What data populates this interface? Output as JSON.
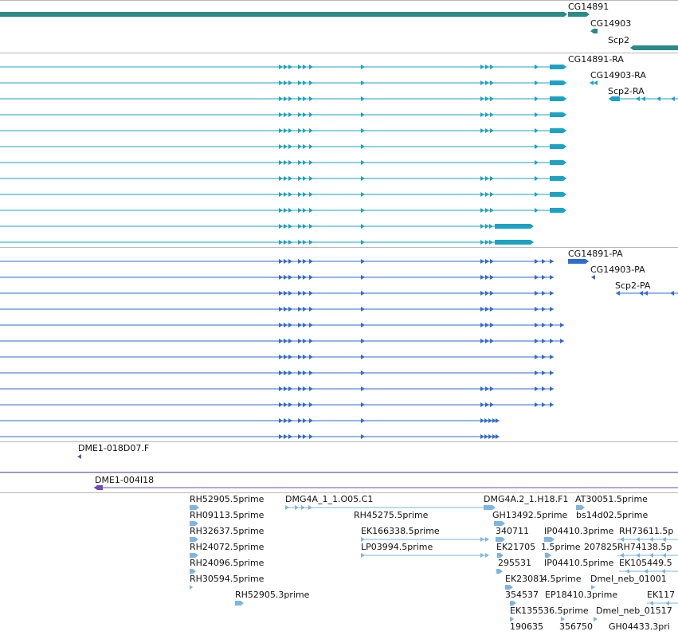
{
  "colors": {
    "gene": "#2a8a86",
    "transcript_ra": "#1ba3c4",
    "transcript_pa": "#2f6bd0",
    "clone": "#6d4bb8",
    "est": "#7fb5e0",
    "separator": "#b8b8b8"
  },
  "tracks": {
    "genes": [
      "CG14891",
      "CG14903",
      "Scp2"
    ],
    "ra_transcripts": [
      "CG14891-RA",
      "CG14903-RA",
      "Scp2-RA"
    ],
    "pa_transcripts": [
      "CG14891-PA",
      "CG14903-PA",
      "Scp2-PA"
    ],
    "clones": [
      "DME1-018D07.F",
      "DME1-004I18"
    ],
    "ests": [
      "RH52905.5prime",
      "DMG4A_1_1.O05.C1",
      "DMG4A.2_1.H18.F1",
      "AT30051.5prime",
      "RH09113.5prime",
      "RH45275.5prime",
      "GH13492.5prime",
      "bs14d02.5prime",
      "RH32637.5prime",
      "EK166338.5prime",
      "340711",
      "IP04410.3prime",
      "RH73611.5p",
      "RH24072.5prime",
      "LP03994.5prime",
      "EK21705",
      "1.5prime",
      "207825",
      "RH74138.5p",
      "RH24096.5prime",
      "295531",
      "IP04410.5prime",
      "EK105449.5",
      "RH30594.5prime",
      "EK23081",
      "4.5prime",
      "Dmel_neb_01001",
      "RH52905.3prime",
      "354537",
      "EP18410.3prime",
      "EK117",
      "EK135536.5prime",
      "Dmel_neb_01517",
      "190635",
      "356750",
      "GH04433.3pri"
    ]
  }
}
